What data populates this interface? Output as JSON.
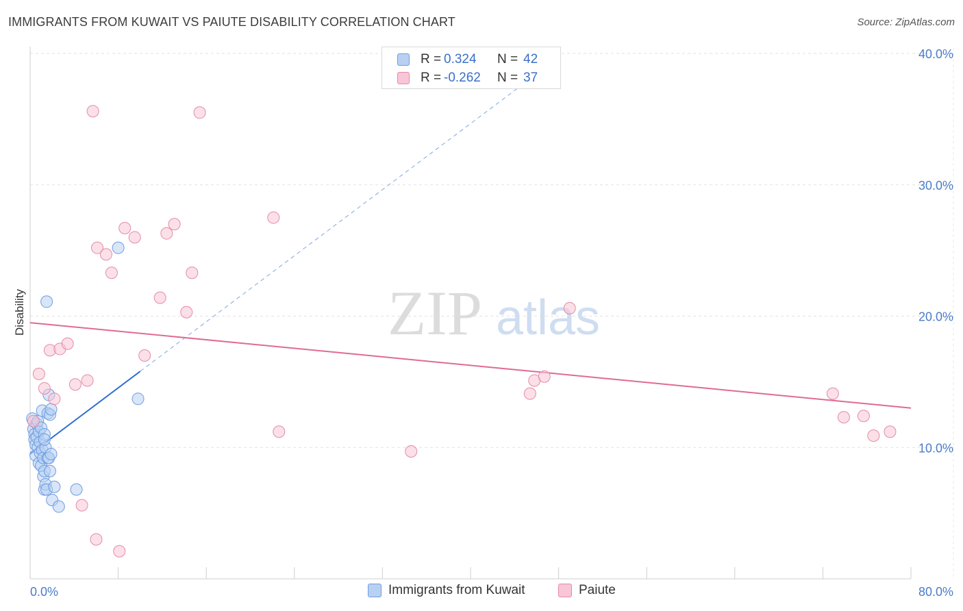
{
  "title": "IMMIGRANTS FROM KUWAIT VS PAIUTE DISABILITY CORRELATION CHART",
  "source": "Source: ZipAtlas.com",
  "watermark": {
    "zip": "ZIP",
    "atlas": "atlas"
  },
  "legend": {
    "rows": [
      {
        "r_label": "R =",
        "r_value": "0.324",
        "n_label": "N =",
        "n_value": "42",
        "color": "#b8d1f3",
        "border": "#6e9be0"
      },
      {
        "r_label": "R =",
        "r_value": "-0.262",
        "n_label": "N =",
        "n_value": "37",
        "color": "#f8c6d6",
        "border": "#e58aa8"
      }
    ]
  },
  "bottom_legend": [
    {
      "label": "Immigrants from Kuwait",
      "color": "#b8d1f3",
      "border": "#6e9be0"
    },
    {
      "label": "Paiute",
      "color": "#f8c6d6",
      "border": "#e58aa8"
    }
  ],
  "chart_data": {
    "type": "scatter",
    "ylabel": "Disability",
    "xlabel": "",
    "xlim": [
      0,
      80
    ],
    "ylim": [
      0,
      40
    ],
    "x_tick_labels": [
      "0.0%",
      "80.0%"
    ],
    "y_tick_labels": [
      {
        "value": 10,
        "label": "10.0%"
      },
      {
        "value": 20,
        "label": "20.0%"
      },
      {
        "value": 30,
        "label": "30.0%"
      },
      {
        "value": 40,
        "label": "40.0%"
      }
    ],
    "grid": true,
    "legend_placement": "top-center",
    "series": [
      {
        "name": "Immigrants from Kuwait",
        "color": "#6e9be0",
        "fill": "#b8d1f3",
        "points": [
          [
            0.2,
            12.2
          ],
          [
            0.3,
            11.4
          ],
          [
            0.4,
            11.0
          ],
          [
            0.4,
            10.6
          ],
          [
            0.5,
            10.2
          ],
          [
            0.5,
            9.4
          ],
          [
            0.6,
            11.8
          ],
          [
            0.6,
            10.8
          ],
          [
            0.7,
            12.0
          ],
          [
            0.7,
            10.0
          ],
          [
            0.8,
            11.2
          ],
          [
            0.8,
            8.8
          ],
          [
            0.9,
            10.4
          ],
          [
            0.9,
            9.6
          ],
          [
            1.0,
            11.5
          ],
          [
            1.0,
            8.6
          ],
          [
            1.1,
            12.8
          ],
          [
            1.1,
            9.8
          ],
          [
            1.2,
            7.8
          ],
          [
            1.2,
            9.2
          ],
          [
            1.3,
            8.2
          ],
          [
            1.3,
            6.8
          ],
          [
            1.4,
            7.2
          ],
          [
            1.4,
            10.0
          ],
          [
            1.5,
            21.1
          ],
          [
            1.5,
            6.8
          ],
          [
            1.6,
            9.2
          ],
          [
            1.6,
            12.6
          ],
          [
            1.7,
            9.2
          ],
          [
            1.7,
            14.0
          ],
          [
            1.3,
            11.0
          ],
          [
            1.3,
            10.6
          ],
          [
            1.8,
            12.5
          ],
          [
            1.8,
            8.2
          ],
          [
            1.9,
            12.9
          ],
          [
            1.9,
            9.5
          ],
          [
            2.0,
            6.0
          ],
          [
            2.2,
            7.0
          ],
          [
            2.6,
            5.5
          ],
          [
            4.2,
            6.8
          ],
          [
            8.0,
            25.2
          ],
          [
            9.8,
            13.7
          ]
        ],
        "trend": {
          "x0": 0.0,
          "y0": 9.5,
          "x1": 10.0,
          "y1": 15.8,
          "style": "solid"
        },
        "trend_ext": {
          "x0": 10.0,
          "y0": 15.8,
          "x1": 45.0,
          "y1": 37.8,
          "style": "dashed"
        }
      },
      {
        "name": "Paiute",
        "color": "#e58aa8",
        "fill": "#f8c6d6",
        "points": [
          [
            0.3,
            12.0
          ],
          [
            0.8,
            15.6
          ],
          [
            1.3,
            14.5
          ],
          [
            1.8,
            17.4
          ],
          [
            2.2,
            13.7
          ],
          [
            2.7,
            17.5
          ],
          [
            3.4,
            17.9
          ],
          [
            4.1,
            14.8
          ],
          [
            4.7,
            5.6
          ],
          [
            5.2,
            15.1
          ],
          [
            5.7,
            35.6
          ],
          [
            6.0,
            3.0
          ],
          [
            6.1,
            25.2
          ],
          [
            6.9,
            24.7
          ],
          [
            7.4,
            23.3
          ],
          [
            8.1,
            2.1
          ],
          [
            8.6,
            26.7
          ],
          [
            9.5,
            26.0
          ],
          [
            10.4,
            17.0
          ],
          [
            11.8,
            21.4
          ],
          [
            12.4,
            26.3
          ],
          [
            13.1,
            27.0
          ],
          [
            14.2,
            20.3
          ],
          [
            14.7,
            23.3
          ],
          [
            15.4,
            35.5
          ],
          [
            22.1,
            27.5
          ],
          [
            22.6,
            11.2
          ],
          [
            34.6,
            9.7
          ],
          [
            45.4,
            14.1
          ],
          [
            45.8,
            15.1
          ],
          [
            46.7,
            15.4
          ],
          [
            49.0,
            20.6
          ],
          [
            72.9,
            14.1
          ],
          [
            73.9,
            12.3
          ],
          [
            75.7,
            12.4
          ],
          [
            76.6,
            10.9
          ],
          [
            78.1,
            11.2
          ]
        ],
        "trend": {
          "x0": 0.0,
          "y0": 19.5,
          "x1": 80.0,
          "y1": 13.0,
          "style": "solid"
        }
      }
    ]
  }
}
